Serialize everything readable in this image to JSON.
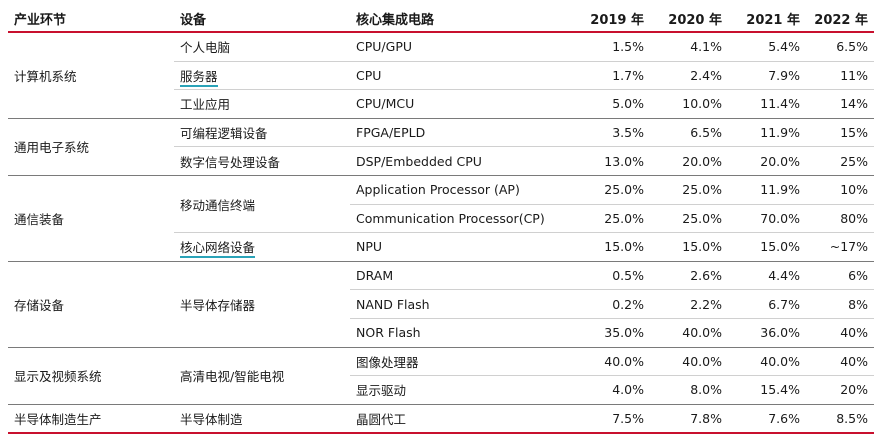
{
  "headers": [
    "产业环节",
    "设备",
    "核心集成电路",
    "2019 年",
    "2020 年",
    "2021 年",
    "2022 年"
  ],
  "groups": [
    {
      "segment": "计算机系统",
      "rows": [
        {
          "device": "个人电脑",
          "ic": "CPU/GPU",
          "v": [
            "1.5%",
            "4.1%",
            "5.4%",
            "6.5%"
          ]
        },
        {
          "device": "服务器",
          "ic": "CPU",
          "v": [
            "1.7%",
            "2.4%",
            "7.9%",
            "11%"
          ]
        },
        {
          "device": "工业应用",
          "ic": "CPU/MCU",
          "v": [
            "5.0%",
            "10.0%",
            "11.4%",
            "14%"
          ]
        }
      ]
    },
    {
      "segment": "通用电子系统",
      "rows": [
        {
          "device": "可编程逻辑设备",
          "ic": "FPGA/EPLD",
          "v": [
            "3.5%",
            "6.5%",
            "11.9%",
            "15%"
          ]
        },
        {
          "device": "数字信号处理设备",
          "ic": "DSP/Embedded CPU",
          "v": [
            "13.0%",
            "20.0%",
            "20.0%",
            "25%"
          ]
        }
      ]
    },
    {
      "segment": "通信装备",
      "rows": [
        {
          "device": "移动通信终端",
          "ic": "Application Processor (AP)",
          "v": [
            "25.0%",
            "25.0%",
            "11.9%",
            "10%"
          ]
        },
        {
          "device": "",
          "ic": "Communication Processor(CP)",
          "v": [
            "25.0%",
            "25.0%",
            "70.0%",
            "80%"
          ]
        },
        {
          "device": "核心网络设备",
          "ic": "NPU",
          "v": [
            "15.0%",
            "15.0%",
            "15.0%",
            "~17%"
          ]
        }
      ]
    },
    {
      "segment": "存储设备",
      "rows": [
        {
          "device": "",
          "ic": "DRAM",
          "v": [
            "0.5%",
            "2.6%",
            "4.4%",
            "6%"
          ]
        },
        {
          "device": "半导体存储器",
          "ic": "NAND Flash",
          "v": [
            "0.2%",
            "2.2%",
            "6.7%",
            "8%"
          ]
        },
        {
          "device": "",
          "ic": "NOR Flash",
          "v": [
            "35.0%",
            "40.0%",
            "36.0%",
            "40%"
          ]
        }
      ]
    },
    {
      "segment": "显示及视频系统",
      "rows": [
        {
          "device": "高清电视/智能电视",
          "ic": "图像处理器",
          "v": [
            "40.0%",
            "40.0%",
            "40.0%",
            "40%"
          ]
        },
        {
          "device": "",
          "ic": "显示驱动",
          "v": [
            "4.0%",
            "8.0%",
            "15.4%",
            "20%"
          ]
        }
      ]
    },
    {
      "segment": "半导体制造生产",
      "rows": [
        {
          "device": "半导体制造",
          "ic": "晶圆代工",
          "v": [
            "7.5%",
            "7.8%",
            "7.6%",
            "8.5%"
          ]
        }
      ]
    }
  ]
}
